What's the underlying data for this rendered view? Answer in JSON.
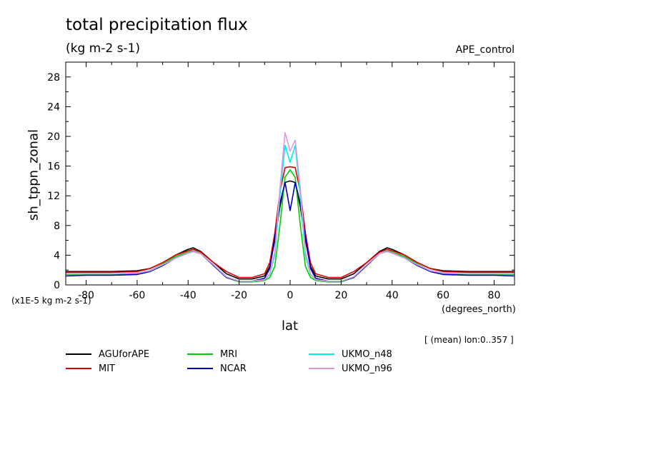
{
  "chart_data": {
    "type": "line",
    "title": "total precipitation flux",
    "units": "(kg m-2 s-1)",
    "dataset_label": "APE_control",
    "ylabel": "sh_tppn_zonal",
    "yscale_note": "(x1E-5 kg m-2 s-1)",
    "xlabel": "lat",
    "xunits": "(degrees_north)",
    "footnote": "[ (mean) lon:0..357 ]",
    "xlim": [
      -88,
      88
    ],
    "ylim": [
      0,
      30
    ],
    "xticks": [
      -80,
      -60,
      -40,
      -20,
      0,
      20,
      40,
      60,
      80
    ],
    "yticks": [
      0,
      4,
      8,
      12,
      16,
      20,
      24,
      28
    ],
    "grid": false,
    "legend_position": "bottom",
    "series": [
      {
        "name": "AGUforAPE",
        "color": "#000000",
        "x": [
          -88,
          -80,
          -70,
          -60,
          -55,
          -50,
          -45,
          -40,
          -38,
          -35,
          -30,
          -25,
          -20,
          -15,
          -10,
          -8,
          -6,
          -4,
          -2,
          0,
          2,
          4,
          6,
          8,
          10,
          15,
          20,
          25,
          30,
          35,
          38,
          40,
          45,
          50,
          55,
          60,
          70,
          80,
          88
        ],
        "y": [
          1.8,
          1.8,
          1.8,
          1.9,
          2.2,
          3.0,
          4.0,
          4.8,
          5.0,
          4.5,
          3.0,
          1.5,
          0.8,
          0.8,
          1.2,
          2.5,
          6.0,
          10.5,
          13.8,
          14.0,
          13.8,
          10.5,
          6.0,
          2.5,
          1.2,
          0.8,
          0.8,
          1.5,
          3.0,
          4.5,
          5.0,
          4.8,
          4.0,
          3.0,
          2.2,
          1.9,
          1.8,
          1.8,
          1.8
        ]
      },
      {
        "name": "MIT",
        "color": "#dd0000",
        "x": [
          -88,
          -80,
          -70,
          -60,
          -55,
          -50,
          -45,
          -40,
          -38,
          -35,
          -30,
          -25,
          -20,
          -15,
          -10,
          -8,
          -6,
          -4,
          -2,
          0,
          2,
          4,
          6,
          8,
          10,
          15,
          20,
          25,
          30,
          35,
          38,
          40,
          45,
          50,
          55,
          60,
          70,
          80,
          88
        ],
        "y": [
          1.7,
          1.7,
          1.7,
          1.8,
          2.2,
          3.0,
          4.0,
          4.6,
          4.8,
          4.4,
          3.0,
          1.8,
          1.0,
          1.0,
          1.5,
          3.0,
          7.0,
          12.5,
          15.8,
          15.9,
          15.8,
          12.5,
          7.0,
          3.0,
          1.5,
          1.0,
          1.0,
          1.8,
          3.0,
          4.4,
          4.8,
          4.6,
          4.0,
          3.0,
          2.2,
          1.8,
          1.7,
          1.7,
          1.7
        ]
      },
      {
        "name": "MRI",
        "color": "#00cc00",
        "x": [
          -88,
          -80,
          -70,
          -60,
          -55,
          -50,
          -45,
          -40,
          -38,
          -35,
          -30,
          -25,
          -20,
          -15,
          -10,
          -8,
          -6,
          -4,
          -2,
          0,
          2,
          4,
          6,
          8,
          10,
          15,
          20,
          25,
          30,
          35,
          38,
          40,
          45,
          50,
          55,
          60,
          70,
          80,
          88
        ],
        "y": [
          1.4,
          1.4,
          1.4,
          1.5,
          1.9,
          2.8,
          3.8,
          4.4,
          4.6,
          4.2,
          2.6,
          1.0,
          0.4,
          0.4,
          0.6,
          1.0,
          2.5,
          8.0,
          14.5,
          15.5,
          14.5,
          8.0,
          2.5,
          1.0,
          0.6,
          0.4,
          0.4,
          1.0,
          2.6,
          4.2,
          4.6,
          4.4,
          3.8,
          2.8,
          1.9,
          1.5,
          1.4,
          1.4,
          1.4
        ]
      },
      {
        "name": "NCAR",
        "color": "#0000bb",
        "x": [
          -88,
          -80,
          -70,
          -60,
          -55,
          -50,
          -45,
          -40,
          -38,
          -35,
          -30,
          -25,
          -20,
          -15,
          -10,
          -8,
          -6,
          -4,
          -2,
          0,
          2,
          4,
          6,
          8,
          10,
          15,
          20,
          25,
          30,
          35,
          38,
          40,
          45,
          50,
          55,
          60,
          70,
          80,
          88
        ],
        "y": [
          1.2,
          1.3,
          1.3,
          1.4,
          1.8,
          2.6,
          3.6,
          4.3,
          4.5,
          4.2,
          2.6,
          1.0,
          0.5,
          0.5,
          0.9,
          2.2,
          6.5,
          11.0,
          13.8,
          10.0,
          13.8,
          11.0,
          6.5,
          2.2,
          0.9,
          0.5,
          0.5,
          1.0,
          2.6,
          4.2,
          4.5,
          4.3,
          3.6,
          2.6,
          1.8,
          1.4,
          1.3,
          1.3,
          1.2
        ]
      },
      {
        "name": "UKMO_n48",
        "color": "#00eeee",
        "x": [
          -88,
          -80,
          -70,
          -60,
          -55,
          -50,
          -45,
          -40,
          -38,
          -35,
          -30,
          -25,
          -20,
          -15,
          -10,
          -8,
          -6,
          -4,
          -2,
          0,
          2,
          4,
          6,
          8,
          10,
          15,
          20,
          25,
          30,
          35,
          38,
          40,
          45,
          50,
          55,
          60,
          70,
          80,
          88
        ],
        "y": [
          1.5,
          1.5,
          1.5,
          1.6,
          1.9,
          2.7,
          3.6,
          4.3,
          4.5,
          4.2,
          2.7,
          1.1,
          0.5,
          0.5,
          0.7,
          1.4,
          4.0,
          12.0,
          18.8,
          16.5,
          18.8,
          12.0,
          4.0,
          1.4,
          0.7,
          0.5,
          0.5,
          1.1,
          2.7,
          4.2,
          4.5,
          4.3,
          3.6,
          2.7,
          1.9,
          1.6,
          1.5,
          1.5,
          1.5
        ]
      },
      {
        "name": "UKMO_n96",
        "color": "#dd99dd",
        "x": [
          -88,
          -80,
          -70,
          -60,
          -55,
          -50,
          -45,
          -40,
          -38,
          -35,
          -30,
          -25,
          -20,
          -15,
          -10,
          -8,
          -6,
          -4,
          -2,
          0,
          2,
          4,
          6,
          8,
          10,
          15,
          20,
          25,
          30,
          35,
          38,
          40,
          45,
          50,
          55,
          60,
          70,
          80,
          88
        ],
        "y": [
          1.5,
          1.5,
          1.5,
          1.6,
          1.9,
          2.7,
          3.6,
          4.3,
          4.5,
          4.2,
          2.7,
          1.1,
          0.5,
          0.5,
          0.7,
          1.5,
          4.5,
          13.0,
          20.5,
          18.0,
          19.5,
          13.0,
          4.5,
          1.5,
          0.7,
          0.5,
          0.5,
          1.1,
          2.7,
          4.2,
          4.5,
          4.3,
          3.6,
          2.7,
          1.9,
          1.6,
          1.5,
          1.5,
          1.5
        ]
      }
    ]
  }
}
